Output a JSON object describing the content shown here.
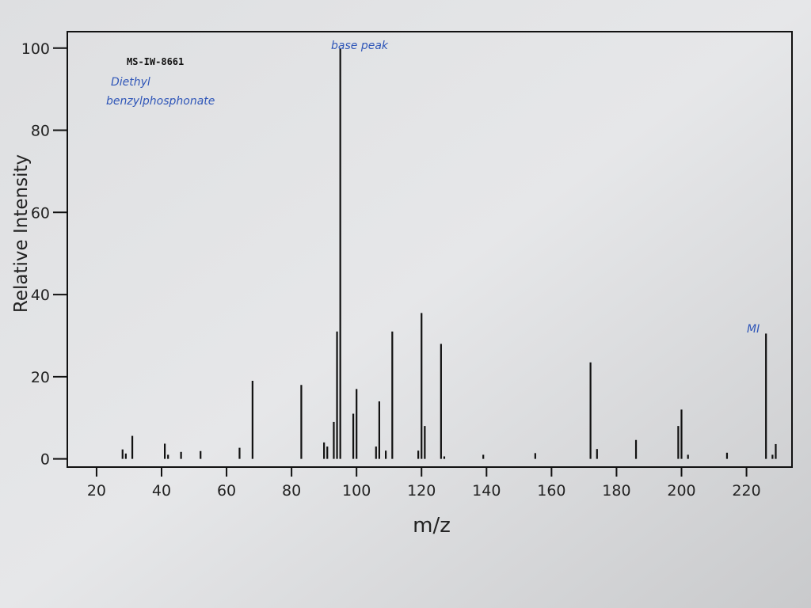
{
  "chart_data": {
    "type": "spectrum",
    "annotations": [
      "MS-IW-8661",
      "Diethyl",
      "benzylphosphonate",
      "base peak",
      "MI"
    ],
    "x_label": "m/z",
    "y_label": "Relative Intensity",
    "x": [
      28,
      29,
      31,
      41,
      42,
      46,
      52,
      64,
      68,
      83,
      90,
      91,
      93,
      94,
      95,
      99,
      100,
      106,
      107,
      109,
      111,
      119,
      120,
      121,
      126,
      127,
      139,
      155,
      172,
      174,
      186,
      199,
      200,
      202,
      214,
      226,
      228,
      229
    ],
    "values": [
      2.3,
      1.3,
      5.6,
      3.7,
      1,
      1.7,
      1.9,
      2.7,
      19,
      18,
      4,
      3,
      9,
      31,
      100,
      11,
      17,
      3,
      14,
      2,
      31,
      2,
      35.5,
      8,
      28,
      0.6,
      1,
      1.4,
      23.5,
      2.4,
      4.6,
      8,
      12,
      1,
      1.5,
      30.5,
      1,
      3.6
    ],
    "color": "#111111",
    "xlim": [
      11,
      234
    ],
    "ylim": [
      -2,
      104
    ],
    "xticks": [
      20,
      40,
      60,
      80,
      100,
      120,
      140,
      160,
      180,
      200,
      220
    ],
    "yticks": [
      0,
      20,
      40,
      60,
      80,
      100
    ]
  }
}
